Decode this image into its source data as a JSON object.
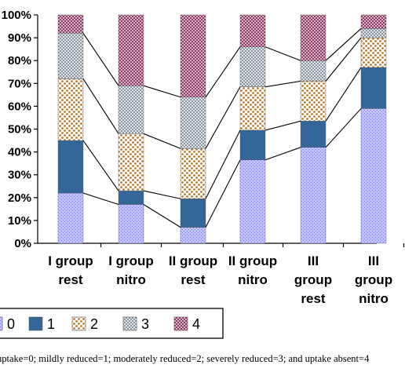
{
  "chart_data": {
    "type": "stacked-bar-100",
    "categories": [
      [
        "I group",
        "rest"
      ],
      [
        "I group",
        "nitro"
      ],
      [
        "II group",
        "rest"
      ],
      [
        "II group",
        "nitro"
      ],
      [
        "III",
        "group",
        "rest"
      ],
      [
        "III",
        "group",
        "nitro"
      ]
    ],
    "series": [
      {
        "name": "0",
        "values": [
          22,
          17,
          7,
          36.5,
          42,
          59
        ]
      },
      {
        "name": "1",
        "values": [
          23,
          6,
          12.5,
          13,
          11.5,
          18
        ]
      },
      {
        "name": "2",
        "values": [
          27,
          25,
          22,
          19,
          17.5,
          13
        ]
      },
      {
        "name": "3",
        "values": [
          20,
          21,
          22.5,
          17.5,
          9,
          4
        ]
      },
      {
        "name": "4",
        "values": [
          8,
          31,
          36,
          14,
          20,
          6
        ]
      }
    ],
    "yticks": [
      "0%",
      "10%",
      "20%",
      "30%",
      "40%",
      "50%",
      "60%",
      "70%",
      "80%",
      "90%",
      "100%"
    ],
    "ylim": [
      0,
      100
    ],
    "legend_position": "bottom",
    "caption": "uptake=0; mildly reduced=1; moderately reduced=2; severely reduced=3; and uptake absent=4",
    "colors": {
      "s0": "#9999ff",
      "s1": "#336699",
      "s2": "#cc9955",
      "s3": "#aab3bb",
      "s4": "#994d73"
    }
  }
}
